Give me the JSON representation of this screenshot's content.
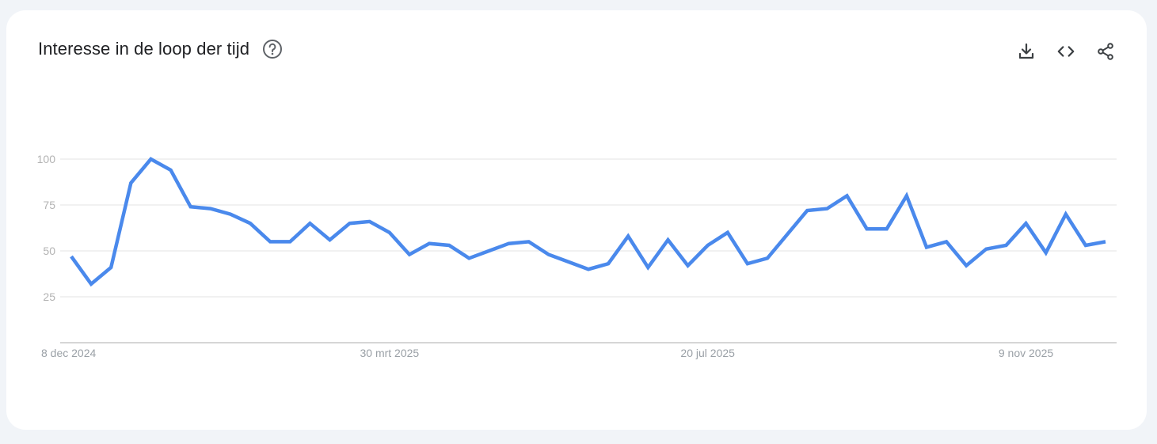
{
  "header": {
    "title": "Interesse in de loop der tijd"
  },
  "icons": {
    "help": "help-circle-icon",
    "download": "download-icon",
    "embed": "code-icon",
    "share": "share-icon"
  },
  "colors": {
    "line": "#4a89ec",
    "grid": "#e3e3e3",
    "axis": "#bdbdbd"
  },
  "chart_data": {
    "type": "line",
    "title": "Interesse in de loop der tijd",
    "xlabel": "",
    "ylabel": "",
    "ylim": [
      0,
      100
    ],
    "y_ticks": [
      25,
      50,
      75,
      100
    ],
    "x_tick_labels": [
      "8 dec 2024",
      "30 mrt 2025",
      "20 jul 2025",
      "9 nov 2025"
    ],
    "x_tick_weeks": [
      0,
      16,
      32,
      48
    ],
    "grid": true,
    "x": [
      "2024-12-08",
      "2024-12-15",
      "2024-12-22",
      "2024-12-29",
      "2025-01-05",
      "2025-01-12",
      "2025-01-19",
      "2025-01-26",
      "2025-02-02",
      "2025-02-09",
      "2025-02-16",
      "2025-02-23",
      "2025-03-02",
      "2025-03-09",
      "2025-03-16",
      "2025-03-23",
      "2025-03-30",
      "2025-04-06",
      "2025-04-13",
      "2025-04-20",
      "2025-04-27",
      "2025-05-04",
      "2025-05-11",
      "2025-05-18",
      "2025-05-25",
      "2025-06-01",
      "2025-06-08",
      "2025-06-15",
      "2025-06-22",
      "2025-06-29",
      "2025-07-06",
      "2025-07-13",
      "2025-07-20",
      "2025-07-27",
      "2025-08-03",
      "2025-08-10",
      "2025-08-17",
      "2025-08-24",
      "2025-08-31",
      "2025-09-07",
      "2025-09-14",
      "2025-09-21",
      "2025-09-28",
      "2025-10-05",
      "2025-10-12",
      "2025-10-19",
      "2025-10-26",
      "2025-11-02",
      "2025-11-09",
      "2025-11-16",
      "2025-11-23",
      "2025-11-30",
      "2025-12-07"
    ],
    "values": [
      47,
      32,
      41,
      87,
      100,
      94,
      74,
      73,
      70,
      65,
      55,
      55,
      65,
      56,
      65,
      66,
      60,
      48,
      54,
      53,
      46,
      50,
      54,
      55,
      48,
      44,
      40,
      43,
      58,
      41,
      56,
      42,
      53,
      60,
      43,
      46,
      59,
      72,
      73,
      80,
      62,
      62,
      80,
      52,
      55,
      42,
      51,
      53,
      65,
      49,
      70,
      53,
      55
    ]
  }
}
